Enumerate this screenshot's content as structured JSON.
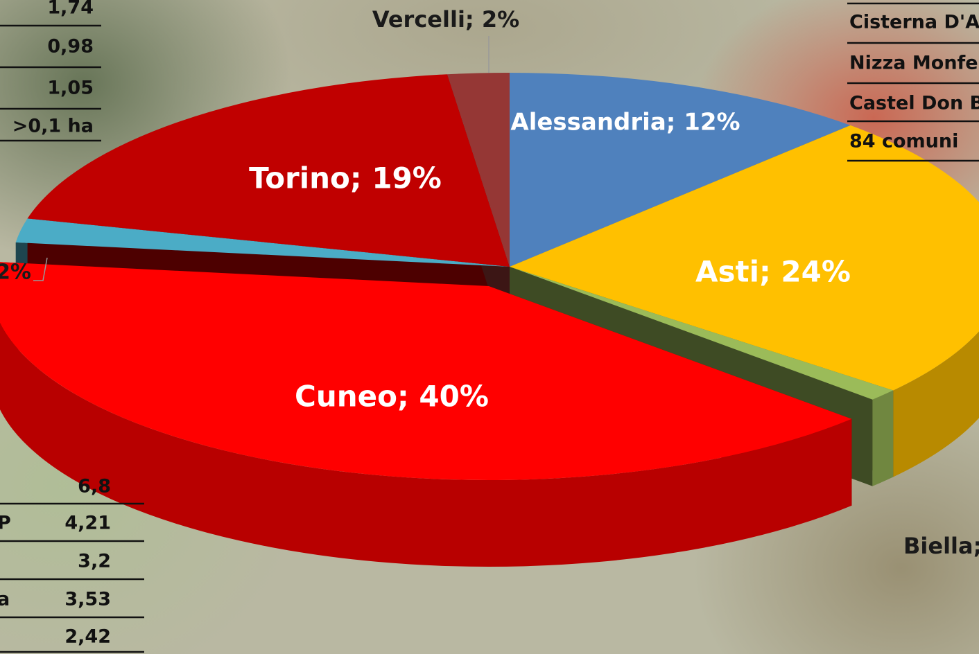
{
  "chart_data": {
    "type": "pie3d",
    "values": [
      12,
      24,
      1,
      40,
      2,
      19,
      2
    ],
    "value_labels": [
      "Alessandria; 12%",
      "Asti; 24%",
      "Biella;",
      "Cuneo; 40%",
      "2%",
      "Torino; 19%",
      "Vercelli; 2%"
    ],
    "colors": [
      "#4f81bd",
      "#ffc000",
      "#9bbb59",
      "#ff0000",
      "#4bacc6",
      "#c00000",
      "#953735"
    ],
    "exploded": 3
  },
  "left_table": {
    "values": [
      "1,74",
      "0,98",
      "1,05",
      ">0,1 ha"
    ]
  },
  "right_table": {
    "rows": [
      "Cisterna D'A",
      "Nizza Monfe",
      "Castel Don B",
      "84 comuni"
    ]
  },
  "bottom_table": {
    "values": [
      "6,8",
      "4,21",
      "3,2",
      "3,53",
      "2,42"
    ],
    "fragments": [
      "P",
      "a"
    ]
  }
}
